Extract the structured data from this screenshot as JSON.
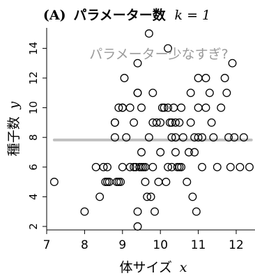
{
  "chart_data": {
    "type": "scatter",
    "title_label": "(A)",
    "title_text": "パラメーター数",
    "title_math": "k = 1",
    "annotation": "パラメーター少なすぎ?",
    "xlabel_text": "体サイズ",
    "xlabel_math": "x",
    "ylabel_text": "種子数",
    "ylabel_math": "y",
    "xlim": [
      7,
      12.5
    ],
    "ylim": [
      1.5,
      15.5
    ],
    "xticks": [
      7,
      8,
      9,
      10,
      11,
      12
    ],
    "yticks": [
      2,
      4,
      6,
      8,
      10,
      12,
      14
    ],
    "fit_line": {
      "y": 7.83,
      "x_range": [
        7.2,
        12.4
      ],
      "color": "#c0c0c0"
    },
    "points": [
      [
        7.2,
        5
      ],
      [
        8.0,
        3
      ],
      [
        8.3,
        6
      ],
      [
        8.4,
        4
      ],
      [
        8.5,
        6
      ],
      [
        8.55,
        5
      ],
      [
        8.6,
        6
      ],
      [
        8.6,
        5
      ],
      [
        8.65,
        5
      ],
      [
        8.8,
        9
      ],
      [
        8.8,
        8
      ],
      [
        8.8,
        9
      ],
      [
        8.85,
        5
      ],
      [
        8.9,
        5
      ],
      [
        8.95,
        5
      ],
      [
        8.9,
        10
      ],
      [
        9.0,
        10
      ],
      [
        9.0,
        10
      ],
      [
        9.0,
        6
      ],
      [
        9.05,
        12
      ],
      [
        9.1,
        8
      ],
      [
        9.2,
        6
      ],
      [
        9.2,
        10
      ],
      [
        9.3,
        6
      ],
      [
        9.3,
        9
      ],
      [
        9.35,
        6
      ],
      [
        9.4,
        13
      ],
      [
        9.4,
        11
      ],
      [
        9.4,
        11
      ],
      [
        9.4,
        3
      ],
      [
        9.4,
        2
      ],
      [
        9.45,
        6
      ],
      [
        9.5,
        6
      ],
      [
        9.5,
        7
      ],
      [
        9.5,
        10
      ],
      [
        9.55,
        6
      ],
      [
        9.6,
        6
      ],
      [
        9.6,
        5
      ],
      [
        9.65,
        4
      ],
      [
        9.7,
        8
      ],
      [
        9.7,
        15
      ],
      [
        9.75,
        4
      ],
      [
        9.8,
        11
      ],
      [
        9.8,
        9
      ],
      [
        9.8,
        6
      ],
      [
        9.85,
        3
      ],
      [
        9.9,
        9
      ],
      [
        9.95,
        5
      ],
      [
        10.0,
        9
      ],
      [
        10.0,
        7
      ],
      [
        10.05,
        10
      ],
      [
        10.1,
        10
      ],
      [
        10.15,
        5
      ],
      [
        10.2,
        6
      ],
      [
        10.2,
        10
      ],
      [
        10.2,
        14
      ],
      [
        10.25,
        9
      ],
      [
        10.3,
        8
      ],
      [
        10.3,
        9
      ],
      [
        10.3,
        6
      ],
      [
        10.35,
        10
      ],
      [
        10.4,
        9
      ],
      [
        10.4,
        7
      ],
      [
        10.4,
        8
      ],
      [
        10.45,
        6
      ],
      [
        10.5,
        9
      ],
      [
        10.5,
        6
      ],
      [
        10.55,
        10
      ],
      [
        10.55,
        6
      ],
      [
        10.6,
        8
      ],
      [
        10.7,
        5
      ],
      [
        10.75,
        7
      ],
      [
        10.8,
        9
      ],
      [
        10.8,
        11
      ],
      [
        10.85,
        4
      ],
      [
        10.9,
        7
      ],
      [
        10.9,
        8
      ],
      [
        10.95,
        3
      ],
      [
        11.0,
        12
      ],
      [
        11.0,
        10
      ],
      [
        11.0,
        8
      ],
      [
        11.1,
        8
      ],
      [
        11.1,
        6
      ],
      [
        11.2,
        12
      ],
      [
        11.2,
        10
      ],
      [
        11.3,
        11
      ],
      [
        11.35,
        9
      ],
      [
        11.4,
        8
      ],
      [
        11.5,
        6
      ],
      [
        11.6,
        10
      ],
      [
        11.7,
        12
      ],
      [
        11.75,
        11
      ],
      [
        11.8,
        8
      ],
      [
        11.85,
        6
      ],
      [
        11.9,
        13
      ],
      [
        11.95,
        8
      ],
      [
        12.1,
        6
      ],
      [
        12.2,
        8
      ],
      [
        12.35,
        6
      ]
    ]
  }
}
